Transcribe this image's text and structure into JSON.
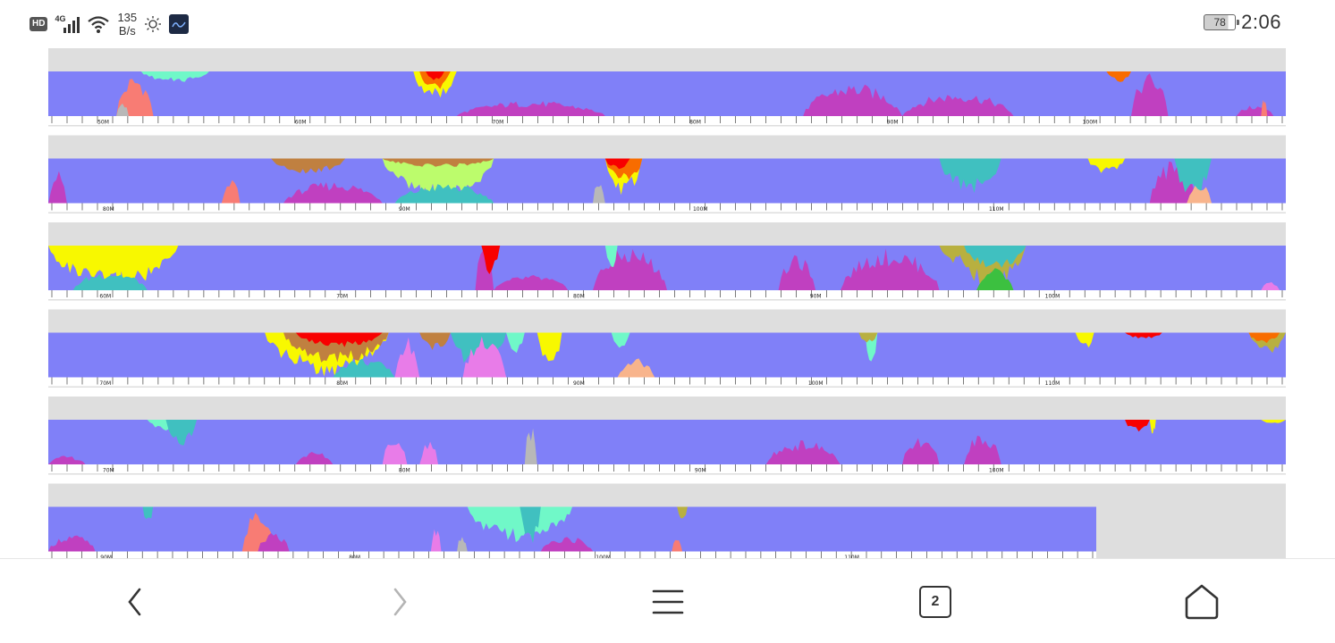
{
  "status_bar": {
    "hd_label": "HD",
    "network_label": "4G",
    "speed_value": "135",
    "speed_unit": "B/s",
    "battery_level": "78",
    "time": "2:06",
    "icons": [
      "hd-icon",
      "signal-icon",
      "wifi-icon",
      "brightness-icon",
      "app-notification-icon",
      "battery-icon"
    ]
  },
  "colors": {
    "background_band": "#dedede",
    "base_blue": "#8080f8",
    "magenta": "#c040c0",
    "pink": "#e87ce8",
    "salmon": "#f87c74",
    "peach": "#f8b48c",
    "yellow": "#f8f800",
    "lime": "#bcfc6c",
    "green": "#3cc040",
    "olive": "#b8b040",
    "teal": "#40c0c0",
    "aqua": "#70f8c8",
    "red": "#f80000",
    "orange": "#f86c00",
    "brown": "#c08040",
    "gray": "#b8b8b8"
  },
  "chart_data": {
    "type": "area",
    "rows": [
      {
        "tick_labels": [
          "50M",
          "60M",
          "70M",
          "80M",
          "90M",
          "100M"
        ],
        "features": [
          {
            "from": 0.055,
            "to": 0.085,
            "peak": 0.95,
            "color": "salmon",
            "from_top": false
          },
          {
            "from": 0.055,
            "to": 0.065,
            "peak": 0.35,
            "color": "gray",
            "from_top": false
          },
          {
            "from": 0.075,
            "to": 0.13,
            "peak": 0.25,
            "color": "aqua",
            "from_top": true
          },
          {
            "from": 0.295,
            "to": 0.33,
            "peak": 0.65,
            "color": "yellow",
            "from_top": true
          },
          {
            "from": 0.3,
            "to": 0.325,
            "peak": 0.45,
            "color": "orange",
            "from_top": true
          },
          {
            "from": 0.305,
            "to": 0.32,
            "peak": 0.25,
            "color": "red",
            "from_top": true
          },
          {
            "from": 0.33,
            "to": 0.45,
            "peak": 0.35,
            "color": "magenta",
            "from_top": false
          },
          {
            "from": 0.61,
            "to": 0.69,
            "peak": 0.75,
            "color": "magenta",
            "from_top": false
          },
          {
            "from": 0.69,
            "to": 0.78,
            "peak": 0.55,
            "color": "magenta",
            "from_top": false
          },
          {
            "from": 0.875,
            "to": 0.905,
            "peak": 1.0,
            "color": "magenta",
            "from_top": false
          },
          {
            "from": 0.855,
            "to": 0.875,
            "peak": 0.25,
            "color": "orange",
            "from_top": true
          },
          {
            "from": 0.96,
            "to": 0.99,
            "peak": 0.25,
            "color": "magenta",
            "from_top": false
          },
          {
            "from": 0.98,
            "to": 0.985,
            "peak": 0.4,
            "color": "salmon",
            "from_top": false
          }
        ]
      },
      {
        "tick_labels": [
          "80M",
          "90M",
          "100M",
          "110M"
        ],
        "features": [
          {
            "from": 0.0,
            "to": 0.015,
            "peak": 0.75,
            "color": "magenta",
            "from_top": false
          },
          {
            "from": 0.14,
            "to": 0.155,
            "peak": 0.6,
            "color": "salmon",
            "from_top": false
          },
          {
            "from": 0.18,
            "to": 0.24,
            "peak": 0.35,
            "color": "brown",
            "from_top": true
          },
          {
            "from": 0.19,
            "to": 0.27,
            "peak": 0.5,
            "color": "magenta",
            "from_top": false
          },
          {
            "from": 0.27,
            "to": 0.36,
            "peak": 1.0,
            "color": "lime",
            "from_top": true
          },
          {
            "from": 0.28,
            "to": 0.36,
            "peak": 0.45,
            "color": "teal",
            "from_top": false
          },
          {
            "from": 0.27,
            "to": 0.36,
            "peak": 0.2,
            "color": "brown",
            "from_top": true
          },
          {
            "from": 0.44,
            "to": 0.45,
            "peak": 0.5,
            "color": "gray",
            "from_top": false
          },
          {
            "from": 0.45,
            "to": 0.48,
            "peak": 0.85,
            "color": "yellow",
            "from_top": true
          },
          {
            "from": 0.45,
            "to": 0.48,
            "peak": 0.55,
            "color": "orange",
            "from_top": true
          },
          {
            "from": 0.45,
            "to": 0.47,
            "peak": 0.25,
            "color": "red",
            "from_top": true
          },
          {
            "from": 0.72,
            "to": 0.77,
            "peak": 0.8,
            "color": "teal",
            "from_top": true
          },
          {
            "from": 0.84,
            "to": 0.87,
            "peak": 0.35,
            "color": "yellow",
            "from_top": true
          },
          {
            "from": 0.89,
            "to": 0.93,
            "peak": 1.0,
            "color": "magenta",
            "from_top": false
          },
          {
            "from": 0.91,
            "to": 0.94,
            "peak": 0.9,
            "color": "teal",
            "from_top": true
          },
          {
            "from": 0.92,
            "to": 0.94,
            "peak": 0.5,
            "color": "peach",
            "from_top": false
          }
        ]
      },
      {
        "tick_labels": [
          "60M",
          "70M",
          "80M",
          "90M",
          "100M"
        ],
        "features": [
          {
            "from": 0.0,
            "to": 0.105,
            "peak": 1.0,
            "color": "yellow",
            "from_top": true
          },
          {
            "from": 0.02,
            "to": 0.08,
            "peak": 0.45,
            "color": "teal",
            "from_top": false
          },
          {
            "from": 0.345,
            "to": 0.36,
            "peak": 1.0,
            "color": "magenta",
            "from_top": false
          },
          {
            "from": 0.35,
            "to": 0.365,
            "peak": 0.65,
            "color": "red",
            "from_top": true
          },
          {
            "from": 0.36,
            "to": 0.42,
            "peak": 0.35,
            "color": "magenta",
            "from_top": false
          },
          {
            "from": 0.44,
            "to": 0.5,
            "peak": 1.0,
            "color": "magenta",
            "from_top": false
          },
          {
            "from": 0.45,
            "to": 0.46,
            "peak": 0.55,
            "color": "aqua",
            "from_top": true
          },
          {
            "from": 0.59,
            "to": 0.62,
            "peak": 0.8,
            "color": "magenta",
            "from_top": false
          },
          {
            "from": 0.64,
            "to": 0.72,
            "peak": 0.95,
            "color": "magenta",
            "from_top": false
          },
          {
            "from": 0.72,
            "to": 0.74,
            "peak": 0.4,
            "color": "olive",
            "from_top": true
          },
          {
            "from": 0.735,
            "to": 0.79,
            "peak": 1.0,
            "color": "olive",
            "from_top": true
          },
          {
            "from": 0.74,
            "to": 0.79,
            "peak": 0.55,
            "color": "teal",
            "from_top": true
          },
          {
            "from": 0.75,
            "to": 0.78,
            "peak": 0.5,
            "color": "green",
            "from_top": false
          },
          {
            "from": 0.98,
            "to": 0.995,
            "peak": 0.2,
            "color": "pink",
            "from_top": false
          }
        ]
      },
      {
        "tick_labels": [
          "70M",
          "80M",
          "90M",
          "100M",
          "110M"
        ],
        "features": [
          {
            "from": 0.175,
            "to": 0.275,
            "peak": 1.0,
            "color": "yellow",
            "from_top": true
          },
          {
            "from": 0.19,
            "to": 0.275,
            "peak": 0.75,
            "color": "brown",
            "from_top": true
          },
          {
            "from": 0.2,
            "to": 0.27,
            "peak": 0.35,
            "color": "red",
            "from_top": true
          },
          {
            "from": 0.23,
            "to": 0.28,
            "peak": 0.45,
            "color": "teal",
            "from_top": false
          },
          {
            "from": 0.28,
            "to": 0.3,
            "peak": 0.95,
            "color": "pink",
            "from_top": false
          },
          {
            "from": 0.3,
            "to": 0.325,
            "peak": 0.4,
            "color": "brown",
            "from_top": true
          },
          {
            "from": 0.325,
            "to": 0.37,
            "peak": 0.9,
            "color": "teal",
            "from_top": true
          },
          {
            "from": 0.335,
            "to": 0.37,
            "peak": 0.95,
            "color": "pink",
            "from_top": false
          },
          {
            "from": 0.37,
            "to": 0.385,
            "peak": 0.5,
            "color": "aqua",
            "from_top": true
          },
          {
            "from": 0.395,
            "to": 0.415,
            "peak": 0.8,
            "color": "yellow",
            "from_top": true
          },
          {
            "from": 0.455,
            "to": 0.47,
            "peak": 0.35,
            "color": "aqua",
            "from_top": true
          },
          {
            "from": 0.46,
            "to": 0.49,
            "peak": 0.45,
            "color": "peach",
            "from_top": false
          },
          {
            "from": 0.66,
            "to": 0.67,
            "peak": 0.75,
            "color": "aqua",
            "from_top": true
          },
          {
            "from": 0.655,
            "to": 0.67,
            "peak": 0.25,
            "color": "olive",
            "from_top": true
          },
          {
            "from": 0.83,
            "to": 0.845,
            "peak": 0.4,
            "color": "yellow",
            "from_top": true
          },
          {
            "from": 0.87,
            "to": 0.9,
            "peak": 0.15,
            "color": "red",
            "from_top": true
          },
          {
            "from": 0.97,
            "to": 1.0,
            "peak": 0.5,
            "color": "olive",
            "from_top": true
          },
          {
            "from": 0.97,
            "to": 0.995,
            "peak": 0.25,
            "color": "orange",
            "from_top": true
          }
        ]
      },
      {
        "tick_labels": [
          "70M",
          "80M",
          "90M",
          "100M"
        ],
        "features": [
          {
            "from": 0.08,
            "to": 0.11,
            "peak": 0.25,
            "color": "aqua",
            "from_top": true
          },
          {
            "from": 0.095,
            "to": 0.12,
            "peak": 0.6,
            "color": "teal",
            "from_top": true
          },
          {
            "from": 0.0,
            "to": 0.03,
            "peak": 0.2,
            "color": "magenta",
            "from_top": false
          },
          {
            "from": 0.2,
            "to": 0.23,
            "peak": 0.3,
            "color": "magenta",
            "from_top": false
          },
          {
            "from": 0.27,
            "to": 0.29,
            "peak": 0.65,
            "color": "pink",
            "from_top": false
          },
          {
            "from": 0.3,
            "to": 0.315,
            "peak": 0.55,
            "color": "pink",
            "from_top": false
          },
          {
            "from": 0.385,
            "to": 0.395,
            "peak": 0.95,
            "color": "gray",
            "from_top": false
          },
          {
            "from": 0.58,
            "to": 0.64,
            "peak": 0.55,
            "color": "magenta",
            "from_top": false
          },
          {
            "from": 0.69,
            "to": 0.72,
            "peak": 0.6,
            "color": "magenta",
            "from_top": false
          },
          {
            "from": 0.74,
            "to": 0.77,
            "peak": 0.75,
            "color": "magenta",
            "from_top": false
          },
          {
            "from": 0.87,
            "to": 0.89,
            "peak": 0.3,
            "color": "red",
            "from_top": true
          },
          {
            "from": 0.89,
            "to": 0.895,
            "peak": 0.35,
            "color": "yellow",
            "from_top": true
          },
          {
            "from": 0.98,
            "to": 1.0,
            "peak": 0.1,
            "color": "yellow",
            "from_top": true
          }
        ]
      },
      {
        "tick_labels": [
          "90M",
          "80M",
          "100M",
          "110M"
        ],
        "features": [
          {
            "from": 0.0,
            "to": 0.045,
            "peak": 0.4,
            "color": "magenta",
            "from_top": false
          },
          {
            "from": 0.09,
            "to": 0.1,
            "peak": 0.4,
            "color": "teal",
            "from_top": true
          },
          {
            "from": 0.185,
            "to": 0.215,
            "peak": 1.0,
            "color": "salmon",
            "from_top": false
          },
          {
            "from": 0.2,
            "to": 0.23,
            "peak": 0.45,
            "color": "magenta",
            "from_top": false
          },
          {
            "from": 0.365,
            "to": 0.375,
            "peak": 0.6,
            "color": "pink",
            "from_top": false
          },
          {
            "from": 0.39,
            "to": 0.4,
            "peak": 0.4,
            "color": "gray",
            "from_top": false
          },
          {
            "from": 0.4,
            "to": 0.5,
            "peak": 0.85,
            "color": "aqua",
            "from_top": true
          },
          {
            "from": 0.45,
            "to": 0.47,
            "peak": 0.9,
            "color": "teal",
            "from_top": true
          },
          {
            "from": 0.47,
            "to": 0.52,
            "peak": 0.35,
            "color": "magenta",
            "from_top": false
          },
          {
            "from": 0.6,
            "to": 0.61,
            "peak": 0.3,
            "color": "olive",
            "from_top": true
          },
          {
            "from": 0.595,
            "to": 0.605,
            "peak": 0.3,
            "color": "salmon",
            "from_top": false
          }
        ]
      }
    ]
  },
  "nav": {
    "tab_count": "2",
    "icons": [
      "back-icon",
      "forward-icon",
      "menu-icon",
      "tabs-icon",
      "home-icon"
    ]
  }
}
